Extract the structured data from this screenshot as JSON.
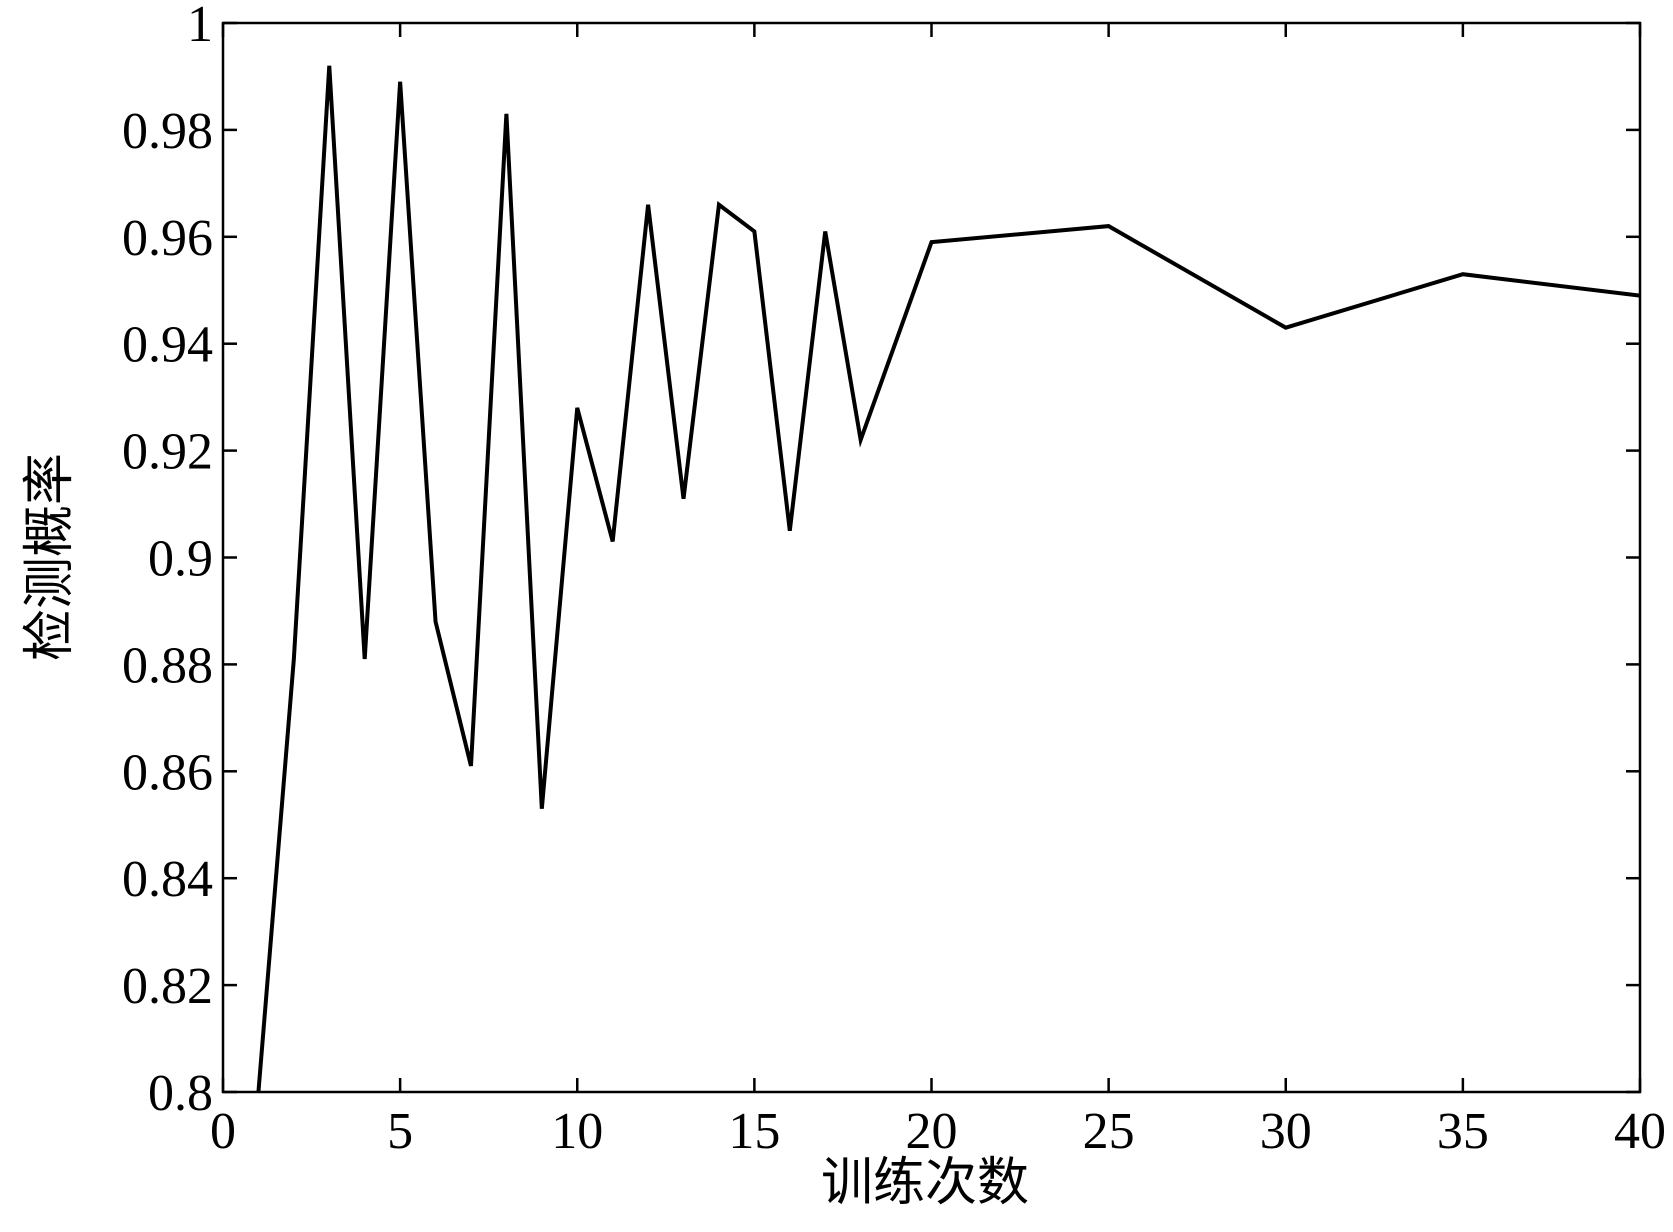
{
  "chart_data": {
    "type": "line",
    "xlabel": "训练次数",
    "ylabel": "检测概率",
    "x": [
      1,
      2,
      3,
      4,
      5,
      6,
      7,
      8,
      9,
      10,
      11,
      12,
      13,
      14,
      15,
      16,
      17,
      18,
      20,
      25,
      30,
      35,
      40
    ],
    "series": [
      {
        "color": "#000000",
        "values": [
          0.8,
          0.881,
          0.992,
          0.881,
          0.989,
          0.888,
          0.861,
          0.983,
          0.853,
          0.928,
          0.903,
          0.966,
          0.911,
          0.966,
          0.961,
          0.905,
          0.961,
          0.922,
          0.959,
          0.962,
          0.943,
          0.953,
          0.949
        ]
      }
    ],
    "xlim": [
      0,
      40
    ],
    "xticks": [
      0,
      5,
      10,
      15,
      20,
      25,
      30,
      35,
      40
    ],
    "ylim": [
      0.8,
      1
    ],
    "yticks": [
      0.8,
      0.82,
      0.84,
      0.86,
      0.88,
      0.9,
      0.92,
      0.94,
      0.96,
      0.98,
      1
    ],
    "grid": false
  }
}
